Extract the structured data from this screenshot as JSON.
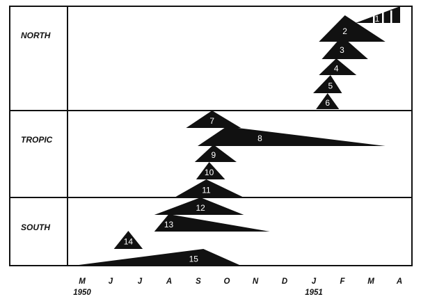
{
  "zones": [
    "NORTH",
    "TROPIC",
    "SOUTH"
  ],
  "months": [
    "M",
    "J",
    "J",
    "A",
    "S",
    "O",
    "N",
    "D",
    "J",
    "F",
    "M",
    "A"
  ],
  "years": [
    {
      "label": "1950",
      "under_month_index": 0
    },
    {
      "label": "1951",
      "under_month_index": 8
    }
  ],
  "colors": {
    "ink": "#111111",
    "paper": "#ffffff",
    "number": "#ffffff"
  },
  "items": [
    {
      "number": "1",
      "zone": "NORTH",
      "start_month": 10.3,
      "peak_month": 11.05,
      "end_month": 11.3,
      "shape": "striped-wedge"
    },
    {
      "number": "2",
      "zone": "NORTH",
      "start_month": 8.2,
      "peak_month": 9.1,
      "end_month": 10.5
    },
    {
      "number": "3",
      "zone": "NORTH",
      "start_month": 8.3,
      "peak_month": 9.0,
      "end_month": 9.9
    },
    {
      "number": "4",
      "zone": "NORTH",
      "start_month": 8.2,
      "peak_month": 8.8,
      "end_month": 9.5
    },
    {
      "number": "5",
      "zone": "NORTH",
      "start_month": 8.0,
      "peak_month": 8.6,
      "end_month": 9.0
    },
    {
      "number": "6",
      "zone": "NORTH",
      "start_month": 8.1,
      "peak_month": 8.5,
      "end_month": 8.9
    },
    {
      "number": "7",
      "zone": "TROPIC",
      "start_month": 3.6,
      "peak_month": 4.5,
      "end_month": 5.5
    },
    {
      "number": "8",
      "zone": "TROPIC",
      "start_month": 4.0,
      "peak_month": 5.0,
      "end_month": 10.5
    },
    {
      "number": "9",
      "zone": "TROPIC",
      "start_month": 3.9,
      "peak_month": 4.55,
      "end_month": 5.35
    },
    {
      "number": "10",
      "zone": "TROPIC",
      "start_month": 3.95,
      "peak_month": 4.4,
      "end_month": 4.95
    },
    {
      "number": "11",
      "zone": "TROPIC",
      "start_month": 3.2,
      "peak_month": 4.3,
      "end_month": 5.6
    },
    {
      "number": "12",
      "zone": "SOUTH",
      "start_month": 2.5,
      "peak_month": 4.1,
      "end_month": 5.6
    },
    {
      "number": "13",
      "zone": "SOUTH",
      "start_month": 2.5,
      "peak_month": 3.0,
      "end_month": 6.5
    },
    {
      "number": "14",
      "zone": "SOUTH",
      "start_month": 1.1,
      "peak_month": 1.6,
      "end_month": 2.1
    },
    {
      "number": "15",
      "zone": "SOUTH",
      "start_month": -0.3,
      "peak_month": 4.2,
      "end_month": 5.5
    }
  ]
}
